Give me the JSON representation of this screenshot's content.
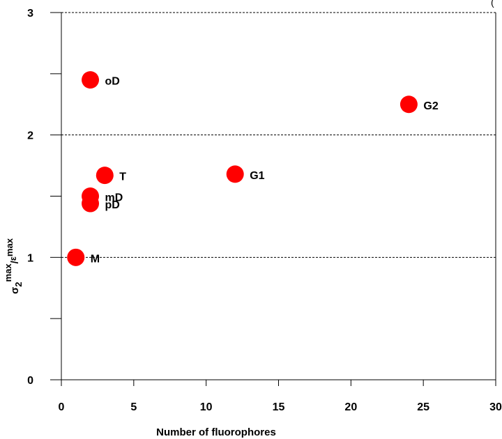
{
  "chart_data": {
    "type": "scatter",
    "title": "",
    "xlabel": "Number of fluorophores",
    "ylabel": "σ2max/εmax",
    "ylabel_parts": {
      "base": "σ",
      "sub": "2",
      "sup1": "max",
      "sep": "/",
      "base2": "ε",
      "sup2": "max"
    },
    "xlim": [
      0,
      30
    ],
    "ylim": [
      0,
      3
    ],
    "x_ticks": [
      0,
      5,
      10,
      15,
      20,
      25,
      30
    ],
    "y_ticks": [
      0,
      1,
      2,
      3
    ],
    "y_minor_ticks": [
      0.5,
      1.5,
      2.5
    ],
    "reference_lines_y": [
      1,
      2,
      3
    ],
    "grid": false,
    "marker_color": "#ff0000",
    "corner_mark": "(",
    "points": [
      {
        "label": "M",
        "x": 1,
        "y": 1.0
      },
      {
        "label": "pD",
        "x": 2,
        "y": 1.44
      },
      {
        "label": "mD",
        "x": 2,
        "y": 1.5
      },
      {
        "label": "oD",
        "x": 2,
        "y": 2.45
      },
      {
        "label": "T",
        "x": 3,
        "y": 1.67
      },
      {
        "label": "G1",
        "x": 12,
        "y": 1.68
      },
      {
        "label": "G2",
        "x": 24,
        "y": 2.25
      }
    ]
  }
}
